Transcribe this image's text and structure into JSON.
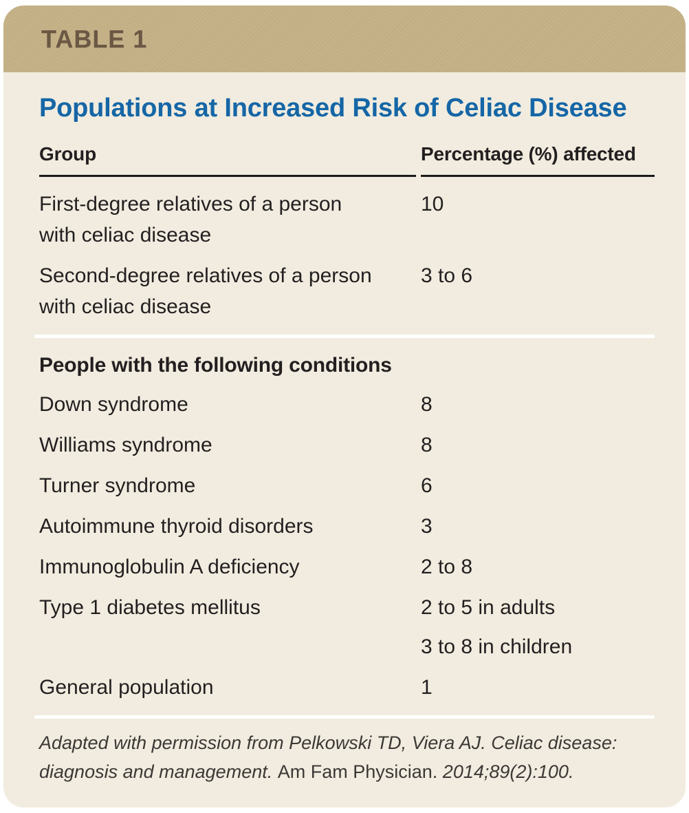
{
  "header": {
    "tag": "TABLE 1"
  },
  "title": "Populations at Increased Risk of Celiac Disease",
  "columns": {
    "group": "Group",
    "value": "Percentage (%) affected"
  },
  "rows": [
    {
      "type": "data",
      "group": "First-degree relatives of a person with celiac disease",
      "values": [
        "10"
      ]
    },
    {
      "type": "data",
      "group": "Second-degree relatives of a person with celiac disease",
      "values": [
        "3 to 6"
      ]
    },
    {
      "type": "divider"
    },
    {
      "type": "section",
      "label": "People with the following conditions"
    },
    {
      "type": "data",
      "group": "Down syndrome",
      "values": [
        "8"
      ]
    },
    {
      "type": "data",
      "group": "Williams syndrome",
      "values": [
        "8"
      ]
    },
    {
      "type": "data",
      "group": "Turner syndrome",
      "values": [
        "6"
      ]
    },
    {
      "type": "data",
      "group": "Autoimmune thyroid disorders",
      "values": [
        "3"
      ]
    },
    {
      "type": "data",
      "group": "Immunoglobulin A deficiency",
      "values": [
        "2 to 8"
      ]
    },
    {
      "type": "data",
      "group": "Type 1 diabetes mellitus",
      "values": [
        "2 to 5 in adults",
        "3 to 8 in children"
      ]
    },
    {
      "type": "data",
      "group": "General population",
      "values": [
        "1"
      ]
    },
    {
      "type": "divider"
    }
  ],
  "footnote": {
    "segments": [
      {
        "text": "Adapted with permission from Pelkowski TD, Viera AJ. Celiac disease: diagnosis and management. ",
        "style": "italic"
      },
      {
        "text": "Am Fam Physician. ",
        "style": "roman"
      },
      {
        "text": "2014;89(2):100.",
        "style": "italic"
      }
    ]
  },
  "colors": {
    "card_background": "#f1ecdf",
    "header_bar": "#c4b085",
    "header_tag_text": "#6b5844",
    "title_blue": "#1566a6",
    "body_text": "#231f20",
    "rule_black": "#1a1a1a",
    "divider_white": "#ffffff"
  }
}
